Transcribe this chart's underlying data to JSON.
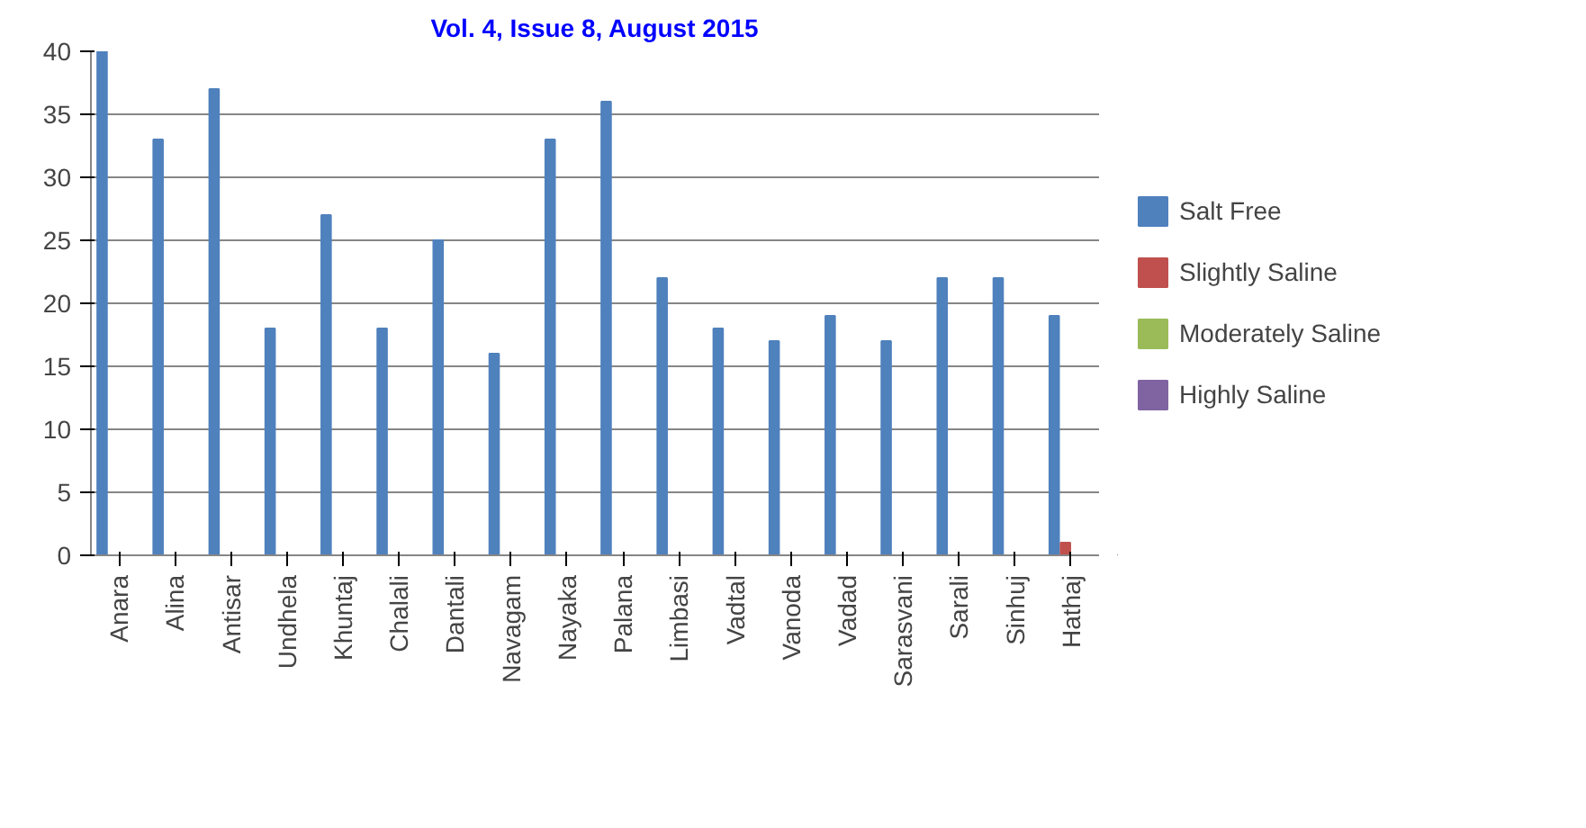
{
  "chart_data": {
    "type": "bar",
    "annotations": [
      "Vol. 4, Issue 8, August 2015"
    ],
    "categories": [
      "Anara",
      "Alina",
      "Antisar",
      "Undhela",
      "Khuntaj",
      "Chalali",
      "Dantali",
      "Navagam",
      "Nayaka",
      "Palana",
      "Limbasi",
      "Vadtal",
      "Vanoda",
      "Vadad",
      "Sarasvani",
      "Sarali",
      "Sinhuj",
      "Hathaj"
    ],
    "series": [
      {
        "name": "Salt Free",
        "color": "#4f81bd",
        "values": [
          40,
          33,
          37,
          18,
          27,
          18,
          25,
          16,
          33,
          36,
          22,
          18,
          17,
          19,
          17,
          22,
          22,
          19
        ]
      },
      {
        "name": "Slightly Saline",
        "color": "#c0504d",
        "values": [
          0,
          0,
          0,
          0,
          0,
          0,
          0,
          0,
          0,
          0,
          0,
          0,
          0,
          0,
          0,
          0,
          0,
          1
        ]
      },
      {
        "name": "Moderately Saline",
        "color": "#9bbb59",
        "values": [
          0,
          0,
          0,
          0,
          0,
          0,
          0,
          0,
          0,
          0,
          0,
          0,
          0,
          0,
          0,
          0,
          0,
          0
        ]
      },
      {
        "name": "Highly Saline",
        "color": "#8064a2",
        "values": [
          0,
          0,
          0,
          0,
          0,
          0,
          0,
          0,
          0,
          0,
          0,
          0,
          0,
          0,
          0,
          0,
          0,
          0
        ]
      }
    ],
    "ylim": [
      0,
      40
    ],
    "yticks": [
      0,
      5,
      10,
      15,
      20,
      25,
      30,
      35,
      40
    ],
    "grid": "y",
    "legend": "right"
  }
}
